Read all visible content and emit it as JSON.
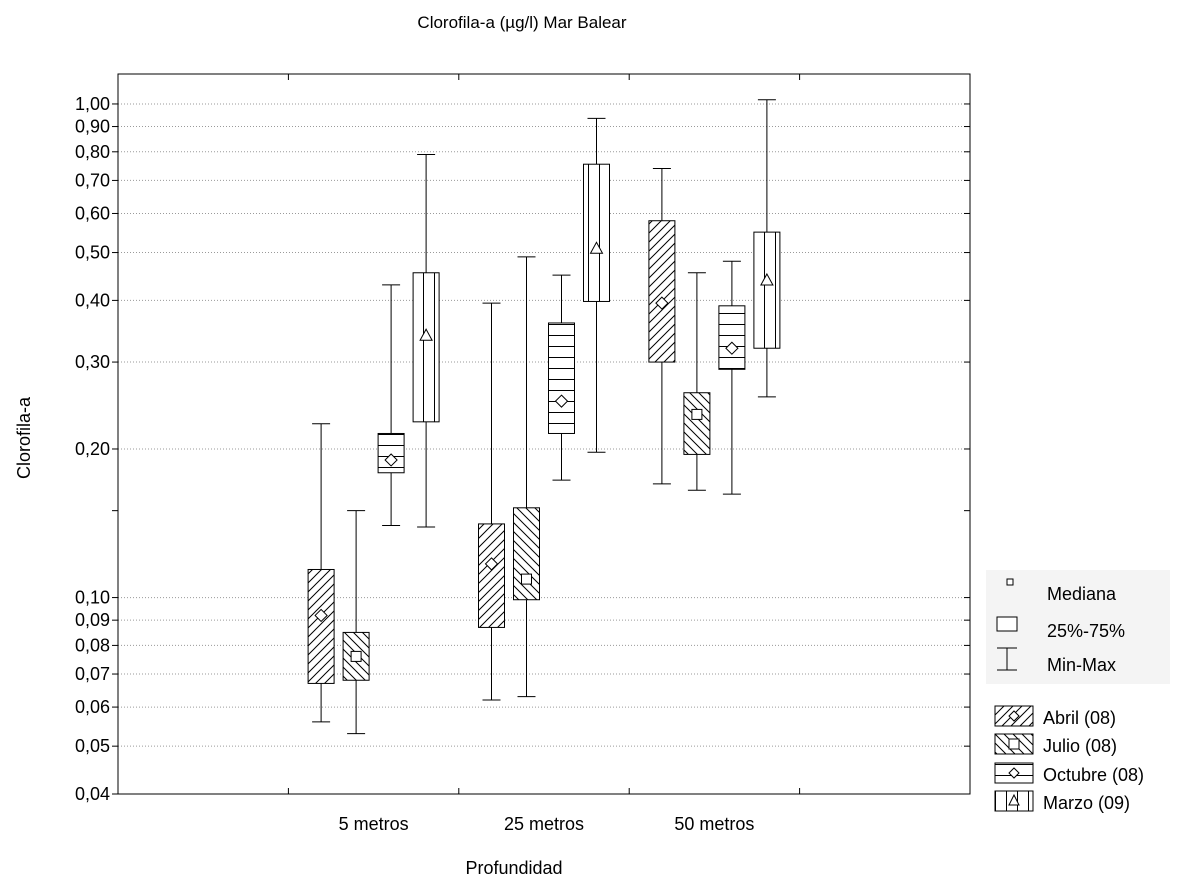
{
  "chart_data": {
    "type": "boxplot",
    "title": "Clorofila-a (µg/l) Mar Balear",
    "xlabel": "Profundidad",
    "ylabel": "Clorofila-a",
    "yscale": "log",
    "ylim": [
      0.04,
      1.15
    ],
    "grid": true,
    "categories": [
      "5 metros",
      "25 metros",
      "50 metros"
    ],
    "yticks": [
      {
        "value": 0.04,
        "label": "0,04"
      },
      {
        "value": 0.05,
        "label": "0,05"
      },
      {
        "value": 0.06,
        "label": "0,06"
      },
      {
        "value": 0.07,
        "label": "0,07"
      },
      {
        "value": 0.08,
        "label": "0,08"
      },
      {
        "value": 0.09,
        "label": "0,09"
      },
      {
        "value": 0.1,
        "label": "0,10"
      },
      {
        "value": 0.2,
        "label": "0,20"
      },
      {
        "value": 0.3,
        "label": "0,30"
      },
      {
        "value": 0.4,
        "label": "0,40"
      },
      {
        "value": 0.5,
        "label": "0,50"
      },
      {
        "value": 0.6,
        "label": "0,60"
      },
      {
        "value": 0.7,
        "label": "0,70"
      },
      {
        "value": 0.8,
        "label": "0,80"
      },
      {
        "value": 0.9,
        "label": "0,90"
      },
      {
        "value": 1.0,
        "label": "1,00"
      }
    ],
    "legend_stats": [
      "Mediana",
      "25%-75%",
      "Min-Max"
    ],
    "series": [
      {
        "name": "Abril (08)",
        "pattern": "diag-fwd",
        "marker": "circle",
        "boxes": [
          {
            "min": 0.056,
            "q1": 0.067,
            "median": 0.092,
            "q3": 0.114,
            "max": 0.225
          },
          {
            "min": 0.062,
            "q1": 0.087,
            "median": 0.117,
            "q3": 0.141,
            "max": 0.395
          },
          {
            "min": 0.17,
            "q1": 0.3,
            "median": 0.395,
            "q3": 0.58,
            "max": 0.74
          }
        ]
      },
      {
        "name": "Julio (08)",
        "pattern": "diag-back",
        "marker": "square",
        "boxes": [
          {
            "min": 0.053,
            "q1": 0.068,
            "median": 0.076,
            "q3": 0.085,
            "max": 0.15
          },
          {
            "min": 0.063,
            "q1": 0.099,
            "median": 0.109,
            "q3": 0.152,
            "max": 0.49
          },
          {
            "min": 0.165,
            "q1": 0.195,
            "median": 0.235,
            "q3": 0.26,
            "max": 0.455
          }
        ]
      },
      {
        "name": "Octubre (08)",
        "pattern": "horizontal",
        "marker": "diamond",
        "boxes": [
          {
            "min": 0.14,
            "q1": 0.179,
            "median": 0.19,
            "q3": 0.215,
            "max": 0.43
          },
          {
            "min": 0.173,
            "q1": 0.215,
            "median": 0.25,
            "q3": 0.36,
            "max": 0.45
          },
          {
            "min": 0.162,
            "q1": 0.29,
            "median": 0.32,
            "q3": 0.39,
            "max": 0.48
          }
        ]
      },
      {
        "name": "Marzo (09)",
        "pattern": "vertical",
        "marker": "triangle",
        "boxes": [
          {
            "min": 0.139,
            "q1": 0.227,
            "median": 0.34,
            "q3": 0.455,
            "max": 0.79
          },
          {
            "min": 0.197,
            "q1": 0.398,
            "median": 0.51,
            "q3": 0.755,
            "max": 0.935
          },
          {
            "min": 0.255,
            "q1": 0.32,
            "median": 0.44,
            "q3": 0.55,
            "max": 1.02
          }
        ]
      }
    ]
  }
}
